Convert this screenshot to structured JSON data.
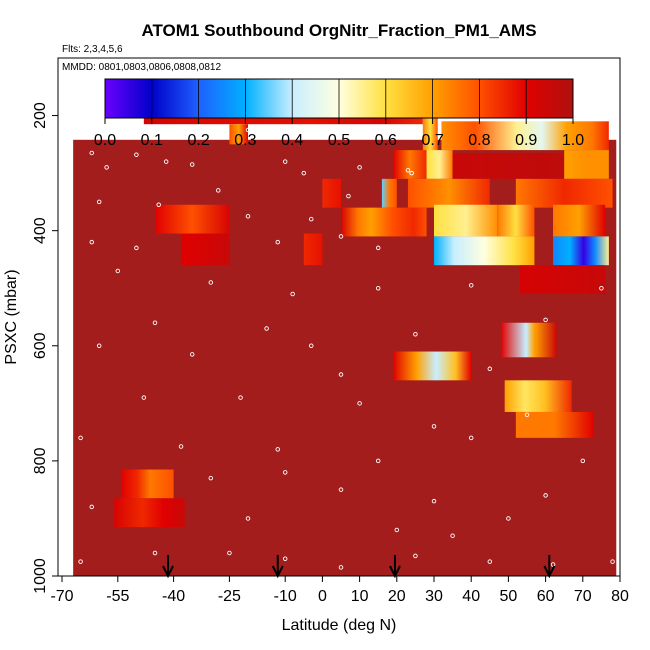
{
  "chart_data": {
    "type": "heatmap",
    "title": "ATOM1 Southbound OrgNitr_Fraction_PM1_AMS",
    "flights_note": "Flts: 2,3,4,5,6",
    "dates_note": "MMDD: 0801,0803,0806,0808,0812",
    "xlabel": "Latitude (deg N)",
    "ylabel": "PSXC (mbar)",
    "xlim": [
      -70,
      80
    ],
    "ylim": [
      1000,
      100
    ],
    "x_ticks": [
      -70,
      -55,
      -40,
      -25,
      -10,
      0,
      10,
      20,
      30,
      40,
      50,
      60,
      70,
      80
    ],
    "x_tick_labels": [
      "-70",
      "-55",
      "-40",
      "-25",
      "-10",
      "0",
      "10",
      "20",
      "30",
      "40",
      "50",
      "60",
      "70",
      "80"
    ],
    "y_ticks": [
      200,
      400,
      600,
      800,
      1000
    ],
    "y_tick_labels": [
      "200",
      "400",
      "600",
      "800",
      "1000"
    ],
    "colorbar": {
      "min": 0.0,
      "max": 1.0,
      "tick_labels": [
        "0.0",
        "0.1",
        "0.2",
        "0.3",
        "0.4",
        "0.5",
        "0.6",
        "0.7",
        "0.8",
        "0.9",
        "1.0"
      ],
      "colors": [
        "#6a00ff",
        "#0000c8",
        "#1e60ff",
        "#00b0ff",
        "#c8eeff",
        "#ffffe0",
        "#ffe040",
        "#ffa000",
        "#ff5000",
        "#e00000",
        "#b01010"
      ]
    },
    "background_value": 1.0,
    "background_extent": {
      "x": [
        -67,
        79
      ],
      "p": [
        190,
        1010
      ]
    },
    "segments": [
      {
        "x": [
          -48,
          27
        ],
        "p": [
          165,
          215
        ],
        "stops": [
          [
            0,
            0.92
          ],
          [
            0.6,
            0.88
          ],
          [
            0.85,
            0.93
          ],
          [
            1,
            0.85
          ]
        ]
      },
      {
        "x": [
          27,
          31
        ],
        "p": [
          165,
          290
        ],
        "stops": [
          [
            0,
            0.75
          ],
          [
            0.5,
            0.6
          ],
          [
            1,
            0.8
          ]
        ]
      },
      {
        "x": [
          -25,
          -20
        ],
        "p": [
          215,
          250
        ],
        "stops": [
          [
            0,
            0.8
          ],
          [
            0.5,
            0.7
          ],
          [
            1,
            0.9
          ]
        ]
      },
      {
        "x": [
          32,
          77
        ],
        "p": [
          210,
          260
        ],
        "stops": [
          [
            0,
            0.72
          ],
          [
            0.2,
            0.8
          ],
          [
            0.45,
            0.55
          ],
          [
            0.6,
            0.45
          ],
          [
            0.75,
            0.7
          ],
          [
            0.9,
            0.75
          ],
          [
            1,
            0.85
          ]
        ]
      },
      {
        "x": [
          19,
          28
        ],
        "p": [
          260,
          310
        ],
        "stops": [
          [
            0,
            0.9
          ],
          [
            0.5,
            0.75
          ],
          [
            1,
            0.85
          ]
        ]
      },
      {
        "x": [
          28,
          35
        ],
        "p": [
          260,
          310
        ],
        "stops": [
          [
            0,
            0.6
          ],
          [
            0.5,
            0.55
          ],
          [
            1,
            0.75
          ]
        ]
      },
      {
        "x": [
          35,
          65
        ],
        "p": [
          265,
          310
        ],
        "stops": [
          [
            0,
            0.95
          ],
          [
            1,
            0.97
          ]
        ]
      },
      {
        "x": [
          65,
          77
        ],
        "p": [
          260,
          310
        ],
        "stops": [
          [
            0,
            0.7
          ],
          [
            0.5,
            0.72
          ],
          [
            1,
            0.72
          ]
        ]
      },
      {
        "x": [
          0,
          5
        ],
        "p": [
          310,
          360
        ],
        "stops": [
          [
            0,
            0.85
          ],
          [
            1,
            0.88
          ]
        ]
      },
      {
        "x": [
          16,
          20
        ],
        "p": [
          310,
          360
        ],
        "stops": [
          [
            0,
            0.35
          ],
          [
            0.5,
            0.75
          ],
          [
            1,
            0.8
          ]
        ]
      },
      {
        "x": [
          23,
          45
        ],
        "p": [
          310,
          360
        ],
        "stops": [
          [
            0,
            0.8
          ],
          [
            0.5,
            0.72
          ],
          [
            1,
            0.85
          ]
        ]
      },
      {
        "x": [
          52,
          78
        ],
        "p": [
          310,
          360
        ],
        "stops": [
          [
            0,
            0.75
          ],
          [
            0.5,
            0.85
          ],
          [
            1,
            0.8
          ]
        ]
      },
      {
        "x": [
          -45,
          -25
        ],
        "p": [
          355,
          405
        ],
        "stops": [
          [
            0,
            0.9
          ],
          [
            0.5,
            0.8
          ],
          [
            1,
            0.92
          ]
        ]
      },
      {
        "x": [
          5,
          28
        ],
        "p": [
          360,
          410
        ],
        "stops": [
          [
            0,
            0.92
          ],
          [
            0.2,
            0.75
          ],
          [
            0.35,
            0.7
          ],
          [
            0.6,
            0.8
          ],
          [
            0.85,
            0.85
          ],
          [
            1,
            0.8
          ]
        ]
      },
      {
        "x": [
          30,
          47
        ],
        "p": [
          355,
          410
        ],
        "stops": [
          [
            0,
            0.6
          ],
          [
            0.5,
            0.55
          ],
          [
            1,
            0.72
          ]
        ]
      },
      {
        "x": [
          47,
          57
        ],
        "p": [
          355,
          410
        ],
        "stops": [
          [
            0,
            0.75
          ],
          [
            0.5,
            0.6
          ],
          [
            1,
            0.8
          ]
        ]
      },
      {
        "x": [
          62,
          76
        ],
        "p": [
          355,
          410
        ],
        "stops": [
          [
            0,
            0.75
          ],
          [
            0.5,
            0.7
          ],
          [
            1,
            0.9
          ]
        ]
      },
      {
        "x": [
          -38,
          -25
        ],
        "p": [
          405,
          460
        ],
        "stops": [
          [
            0,
            0.9
          ],
          [
            1,
            0.95
          ]
        ]
      },
      {
        "x": [
          -5,
          0
        ],
        "p": [
          405,
          460
        ],
        "stops": [
          [
            0,
            0.85
          ],
          [
            1,
            0.88
          ]
        ]
      },
      {
        "x": [
          30,
          57
        ],
        "p": [
          410,
          460
        ],
        "stops": [
          [
            0,
            0.3
          ],
          [
            0.2,
            0.4
          ],
          [
            0.5,
            0.5
          ],
          [
            0.8,
            0.6
          ],
          [
            1,
            0.7
          ]
        ]
      },
      {
        "x": [
          62,
          77
        ],
        "p": [
          410,
          460
        ],
        "stops": [
          [
            0,
            0.25
          ],
          [
            0.3,
            0.3
          ],
          [
            0.55,
            0.05
          ],
          [
            0.75,
            0.25
          ],
          [
            1,
            0.55
          ]
        ]
      },
      {
        "x": [
          53,
          76
        ],
        "p": [
          460,
          510
        ],
        "stops": [
          [
            0,
            0.92
          ],
          [
            1,
            0.95
          ]
        ]
      },
      {
        "x": [
          48,
          63
        ],
        "p": [
          560,
          620
        ],
        "stops": [
          [
            0,
            0.9
          ],
          [
            0.45,
            0.4
          ],
          [
            0.6,
            0.7
          ],
          [
            1,
            0.95
          ]
        ]
      },
      {
        "x": [
          19,
          40
        ],
        "p": [
          610,
          660
        ],
        "stops": [
          [
            0,
            0.9
          ],
          [
            0.3,
            0.7
          ],
          [
            0.55,
            0.4
          ],
          [
            0.8,
            0.65
          ],
          [
            1,
            0.9
          ]
        ]
      },
      {
        "x": [
          49,
          67
        ],
        "p": [
          660,
          715
        ],
        "stops": [
          [
            0,
            0.7
          ],
          [
            0.3,
            0.58
          ],
          [
            0.6,
            0.65
          ],
          [
            1,
            0.85
          ]
        ]
      },
      {
        "x": [
          52,
          73
        ],
        "p": [
          715,
          760
        ],
        "stops": [
          [
            0,
            0.75
          ],
          [
            0.5,
            0.75
          ],
          [
            1,
            0.9
          ]
        ]
      },
      {
        "x": [
          -54,
          -40
        ],
        "p": [
          815,
          865
        ],
        "stops": [
          [
            0,
            0.9
          ],
          [
            0.3,
            0.85
          ],
          [
            0.55,
            0.75
          ],
          [
            1,
            0.8
          ]
        ]
      },
      {
        "x": [
          -56,
          -37
        ],
        "p": [
          865,
          915
        ],
        "stops": [
          [
            0,
            0.92
          ],
          [
            0.4,
            0.85
          ],
          [
            0.7,
            0.9
          ],
          [
            1,
            0.95
          ]
        ]
      }
    ],
    "sample_points": [
      {
        "x": -65,
        "p": 220
      },
      {
        "x": -55,
        "p": 222
      },
      {
        "x": -48,
        "p": 225
      },
      {
        "x": -37,
        "p": 222
      },
      {
        "x": -30,
        "p": 225
      },
      {
        "x": -20,
        "p": 225
      },
      {
        "x": -15,
        "p": 222
      },
      {
        "x": -62,
        "p": 265
      },
      {
        "x": -50,
        "p": 268
      },
      {
        "x": -42,
        "p": 280
      },
      {
        "x": -58,
        "p": 290
      },
      {
        "x": -35,
        "p": 285
      },
      {
        "x": -10,
        "p": 280
      },
      {
        "x": -5,
        "p": 300
      },
      {
        "x": 10,
        "p": 290
      },
      {
        "x": 23,
        "p": 295
      },
      {
        "x": 24,
        "p": 300
      },
      {
        "x": -60,
        "p": 350
      },
      {
        "x": -44,
        "p": 355
      },
      {
        "x": -28,
        "p": 330
      },
      {
        "x": -20,
        "p": 375
      },
      {
        "x": -3,
        "p": 380
      },
      {
        "x": 7,
        "p": 340
      },
      {
        "x": -62,
        "p": 420
      },
      {
        "x": -50,
        "p": 430
      },
      {
        "x": -12,
        "p": 420
      },
      {
        "x": 5,
        "p": 410
      },
      {
        "x": 15,
        "p": 430
      },
      {
        "x": -55,
        "p": 470
      },
      {
        "x": -30,
        "p": 490
      },
      {
        "x": -8,
        "p": 510
      },
      {
        "x": 15,
        "p": 500
      },
      {
        "x": 40,
        "p": 495
      },
      {
        "x": 75,
        "p": 500
      },
      {
        "x": -45,
        "p": 560
      },
      {
        "x": -15,
        "p": 570
      },
      {
        "x": 25,
        "p": 580
      },
      {
        "x": 60,
        "p": 555
      },
      {
        "x": -60,
        "p": 600
      },
      {
        "x": -35,
        "p": 615
      },
      {
        "x": -3,
        "p": 600
      },
      {
        "x": 5,
        "p": 650
      },
      {
        "x": 45,
        "p": 640
      },
      {
        "x": -48,
        "p": 690
      },
      {
        "x": -22,
        "p": 690
      },
      {
        "x": 10,
        "p": 700
      },
      {
        "x": 30,
        "p": 740
      },
      {
        "x": -65,
        "p": 760
      },
      {
        "x": -38,
        "p": 775
      },
      {
        "x": -12,
        "p": 780
      },
      {
        "x": 15,
        "p": 800
      },
      {
        "x": 40,
        "p": 760
      },
      {
        "x": 70,
        "p": 800
      },
      {
        "x": -30,
        "p": 830
      },
      {
        "x": -10,
        "p": 820
      },
      {
        "x": 5,
        "p": 850
      },
      {
        "x": 30,
        "p": 870
      },
      {
        "x": 60,
        "p": 860
      },
      {
        "x": -62,
        "p": 880
      },
      {
        "x": -20,
        "p": 900
      },
      {
        "x": 20,
        "p": 920
      },
      {
        "x": 50,
        "p": 900
      },
      {
        "x": -65,
        "p": 975
      },
      {
        "x": -45,
        "p": 960
      },
      {
        "x": -25,
        "p": 960
      },
      {
        "x": -10,
        "p": 970
      },
      {
        "x": 5,
        "p": 985
      },
      {
        "x": 25,
        "p": 965
      },
      {
        "x": 45,
        "p": 975
      },
      {
        "x": 62,
        "p": 980
      },
      {
        "x": 78,
        "p": 975
      },
      {
        "x": 35,
        "p": 930
      },
      {
        "x": 55,
        "p": 720
      }
    ],
    "arrows_lat": [
      -41.5,
      -12,
      19.5,
      61
    ]
  }
}
